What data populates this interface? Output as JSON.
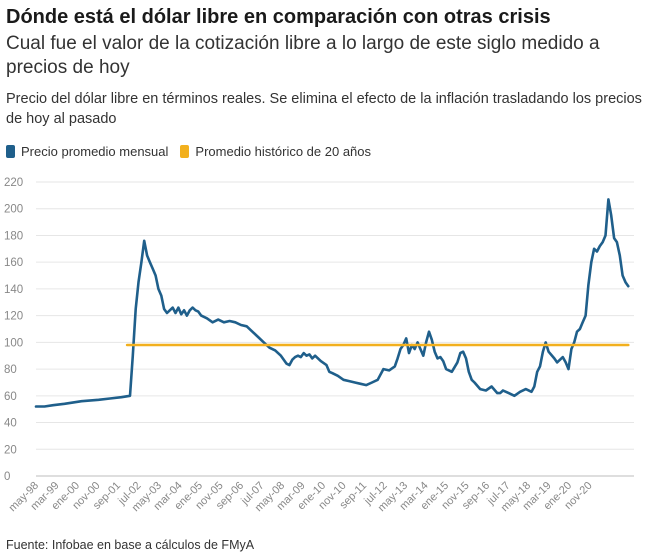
{
  "chart_data": {
    "type": "line",
    "title": "Dónde está el dólar libre en comparación con otras crisis",
    "subtitle": "Cual fue el valor de la cotización libre a lo largo de este siglo medido a precios de hoy",
    "description": "Precio del dólar libre en términos reales. Se elimina el efecto de la inflación trasladando los precios de hoy al pasado",
    "source": "Fuente: Infobae en base a cálculos de FMyA",
    "ylim": [
      0,
      220
    ],
    "yticks": [
      "0",
      "20",
      "40",
      "60",
      "80",
      "100",
      "120",
      "140",
      "160",
      "180",
      "200",
      "220"
    ],
    "xticks": [
      "may-98",
      "mar-99",
      "ene-00",
      "nov-00",
      "sep-01",
      "jul-02",
      "may-03",
      "mar-04",
      "ene-05",
      "nov-05",
      "sep-06",
      "jul-07",
      "may-08",
      "mar-09",
      "ene-10",
      "nov-10",
      "sep-11",
      "jul-12",
      "may-13",
      "mar-14",
      "ene-15",
      "nov-15",
      "sep-16",
      "jul-17",
      "may-18",
      "mar-19",
      "ene-20",
      "nov-20"
    ],
    "grid": true,
    "legend_position": "top-left",
    "series": [
      {
        "name": "Precio promedio mensual",
        "color": "#1f5f8b",
        "points": [
          [
            0,
            52
          ],
          [
            3,
            52
          ],
          [
            6,
            53
          ],
          [
            10,
            54
          ],
          [
            16,
            56
          ],
          [
            22,
            57
          ],
          [
            26,
            58
          ],
          [
            30,
            59
          ],
          [
            33,
            60
          ],
          [
            34,
            90
          ],
          [
            35,
            125
          ],
          [
            36,
            145
          ],
          [
            37,
            160
          ],
          [
            38,
            176
          ],
          [
            39,
            165
          ],
          [
            40,
            160
          ],
          [
            41,
            155
          ],
          [
            42,
            150
          ],
          [
            43,
            140
          ],
          [
            44,
            135
          ],
          [
            45,
            125
          ],
          [
            46,
            122
          ],
          [
            47,
            124
          ],
          [
            48,
            126
          ],
          [
            49,
            122
          ],
          [
            50,
            126
          ],
          [
            51,
            121
          ],
          [
            52,
            124
          ],
          [
            53,
            120
          ],
          [
            54,
            124
          ],
          [
            55,
            126
          ],
          [
            56,
            124
          ],
          [
            57,
            123
          ],
          [
            58,
            120
          ],
          [
            60,
            118
          ],
          [
            62,
            115
          ],
          [
            64,
            117
          ],
          [
            66,
            115
          ],
          [
            68,
            116
          ],
          [
            70,
            115
          ],
          [
            72,
            113
          ],
          [
            74,
            112
          ],
          [
            76,
            108
          ],
          [
            78,
            104
          ],
          [
            80,
            100
          ],
          [
            82,
            96
          ],
          [
            84,
            94
          ],
          [
            86,
            90
          ],
          [
            88,
            84
          ],
          [
            89,
            83
          ],
          [
            90,
            87
          ],
          [
            91,
            89
          ],
          [
            92,
            90
          ],
          [
            93,
            89
          ],
          [
            94,
            92
          ],
          [
            95,
            90
          ],
          [
            96,
            91
          ],
          [
            97,
            88
          ],
          [
            98,
            90
          ],
          [
            100,
            86
          ],
          [
            102,
            83
          ],
          [
            103,
            78
          ],
          [
            104,
            77
          ],
          [
            106,
            75
          ],
          [
            108,
            72
          ],
          [
            110,
            71
          ],
          [
            112,
            70
          ],
          [
            114,
            69
          ],
          [
            116,
            68
          ],
          [
            118,
            70
          ],
          [
            120,
            72
          ],
          [
            122,
            80
          ],
          [
            124,
            79
          ],
          [
            126,
            82
          ],
          [
            127,
            88
          ],
          [
            128,
            95
          ],
          [
            129,
            98
          ],
          [
            130,
            103
          ],
          [
            131,
            92
          ],
          [
            132,
            98
          ],
          [
            133,
            95
          ],
          [
            134,
            100
          ],
          [
            135,
            95
          ],
          [
            136,
            90
          ],
          [
            137,
            100
          ],
          [
            138,
            108
          ],
          [
            139,
            102
          ],
          [
            140,
            93
          ],
          [
            141,
            88
          ],
          [
            142,
            89
          ],
          [
            143,
            86
          ],
          [
            144,
            80
          ],
          [
            146,
            78
          ],
          [
            148,
            85
          ],
          [
            149,
            92
          ],
          [
            150,
            93
          ],
          [
            151,
            88
          ],
          [
            152,
            78
          ],
          [
            153,
            72
          ],
          [
            154,
            70
          ],
          [
            156,
            65
          ],
          [
            158,
            64
          ],
          [
            160,
            67
          ],
          [
            162,
            62
          ],
          [
            163,
            62
          ],
          [
            164,
            64
          ],
          [
            165,
            63
          ],
          [
            166,
            62
          ],
          [
            168,
            60
          ],
          [
            170,
            63
          ],
          [
            172,
            65
          ],
          [
            174,
            63
          ],
          [
            175,
            67
          ],
          [
            176,
            78
          ],
          [
            177,
            82
          ],
          [
            178,
            93
          ],
          [
            179,
            100
          ],
          [
            180,
            93
          ],
          [
            182,
            88
          ],
          [
            183,
            85
          ],
          [
            185,
            89
          ],
          [
            186,
            85
          ],
          [
            187,
            80
          ],
          [
            188,
            95
          ],
          [
            189,
            100
          ],
          [
            190,
            108
          ],
          [
            191,
            110
          ],
          [
            192,
            115
          ],
          [
            193,
            120
          ],
          [
            194,
            143
          ],
          [
            195,
            160
          ],
          [
            196,
            170
          ],
          [
            197,
            168
          ],
          [
            198,
            172
          ],
          [
            199,
            175
          ],
          [
            200,
            180
          ],
          [
            201,
            207
          ],
          [
            202,
            195
          ],
          [
            203,
            178
          ],
          [
            204,
            175
          ],
          [
            205,
            165
          ],
          [
            206,
            150
          ],
          [
            207,
            145
          ],
          [
            208,
            142
          ]
        ]
      },
      {
        "name": "Promedio histórico de 20 años",
        "color": "#f2b01e",
        "points": [
          [
            32,
            98
          ],
          [
            208,
            98
          ]
        ]
      }
    ]
  }
}
